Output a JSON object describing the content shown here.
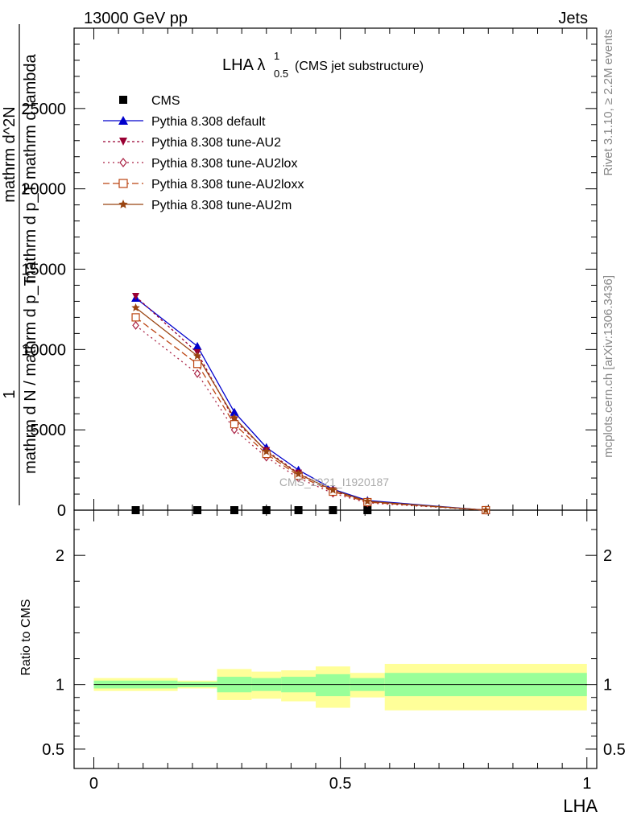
{
  "header": {
    "left": "13000 GeV pp",
    "right": "Jets"
  },
  "side": {
    "rivet": "Rivet 3.1.10, ≥ 2.2M events",
    "mcplots": "mcplots.cern.ch [arXiv:1306.3436]"
  },
  "chart_data": {
    "type": "line",
    "title_main": "LHA λ",
    "title_sup": "1",
    "title_sub": "0.5",
    "title_suffix": "(CMS jet substructure)",
    "watermark": "CMS_2021_I1920187",
    "xlabel": "LHA",
    "ylabel_top_num": "1",
    "ylabel_top_den": "mathrm d N / mathrm d p_T",
    "ylabel_main_num": "mathrm d^2N",
    "ylabel_main_den": "mathrm d p_T mathrm d lambda",
    "ylabel_ratio": "Ratio to CMS",
    "xlim": [
      -0.04,
      1.02
    ],
    "ylim": [
      0,
      30000
    ],
    "ratio_ylim": [
      0.35,
      2.35
    ],
    "x_ticks": [
      "0",
      "0.5",
      "1"
    ],
    "y_ticks": [
      "0",
      "5000",
      "10000",
      "15000",
      "20000",
      "25000"
    ],
    "ratio_ticks": [
      "0.5",
      "1",
      "2"
    ],
    "x": [
      0.085,
      0.21,
      0.285,
      0.35,
      0.415,
      0.485,
      0.555,
      0.795
    ],
    "series": [
      {
        "name": "CMS",
        "values": [
          0,
          0,
          0,
          0,
          0,
          0,
          0,
          0
        ],
        "color": "#000000",
        "marker": "square",
        "dash": ""
      },
      {
        "name": "Pythia 8.308 default",
        "values": [
          13200,
          10200,
          6100,
          3900,
          2500,
          1300,
          600,
          0
        ],
        "color": "#0000cc",
        "marker": "triangle-up",
        "dash": ""
      },
      {
        "name": "Pythia 8.308 tune-AU2",
        "values": [
          13300,
          9800,
          5600,
          3700,
          2300,
          1200,
          520,
          0
        ],
        "color": "#990033",
        "marker": "triangle-down",
        "dash": "3,3"
      },
      {
        "name": "Pythia 8.308 tune-AU2lox",
        "values": [
          11500,
          8500,
          5000,
          3300,
          2000,
          1050,
          450,
          0
        ],
        "color": "#aa2244",
        "marker": "diamond",
        "dash": "2,4"
      },
      {
        "name": "Pythia 8.308 tune-AU2loxx",
        "values": [
          12000,
          9100,
          5350,
          3500,
          2150,
          1150,
          500,
          0
        ],
        "color": "#bb4411",
        "marker": "square-open",
        "dash": "8,4"
      },
      {
        "name": "Pythia 8.308 tune-AU2m",
        "values": [
          12600,
          9600,
          5750,
          3650,
          2250,
          1250,
          550,
          0
        ],
        "color": "#994411",
        "marker": "star",
        "dash": ""
      }
    ],
    "ratio_bands": [
      {
        "x0": 0.0,
        "x1": 0.17,
        "green": [
          0.97,
          1.03
        ],
        "yellow": [
          0.95,
          1.05
        ]
      },
      {
        "x0": 0.17,
        "x1": 0.25,
        "green": [
          0.98,
          1.02
        ],
        "yellow": [
          0.97,
          1.03
        ]
      },
      {
        "x0": 0.25,
        "x1": 0.32,
        "green": [
          0.94,
          1.06
        ],
        "yellow": [
          0.88,
          1.12
        ]
      },
      {
        "x0": 0.32,
        "x1": 0.38,
        "green": [
          0.95,
          1.05
        ],
        "yellow": [
          0.89,
          1.1
        ]
      },
      {
        "x0": 0.38,
        "x1": 0.45,
        "green": [
          0.94,
          1.06
        ],
        "yellow": [
          0.87,
          1.11
        ]
      },
      {
        "x0": 0.45,
        "x1": 0.52,
        "green": [
          0.91,
          1.08
        ],
        "yellow": [
          0.82,
          1.14
        ]
      },
      {
        "x0": 0.52,
        "x1": 0.59,
        "green": [
          0.95,
          1.05
        ],
        "yellow": [
          0.9,
          1.09
        ]
      },
      {
        "x0": 0.59,
        "x1": 1.0,
        "green": [
          0.91,
          1.09
        ],
        "yellow": [
          0.8,
          1.16
        ]
      }
    ],
    "band_colors": {
      "green": "#99ff99",
      "yellow": "#ffff99"
    }
  }
}
